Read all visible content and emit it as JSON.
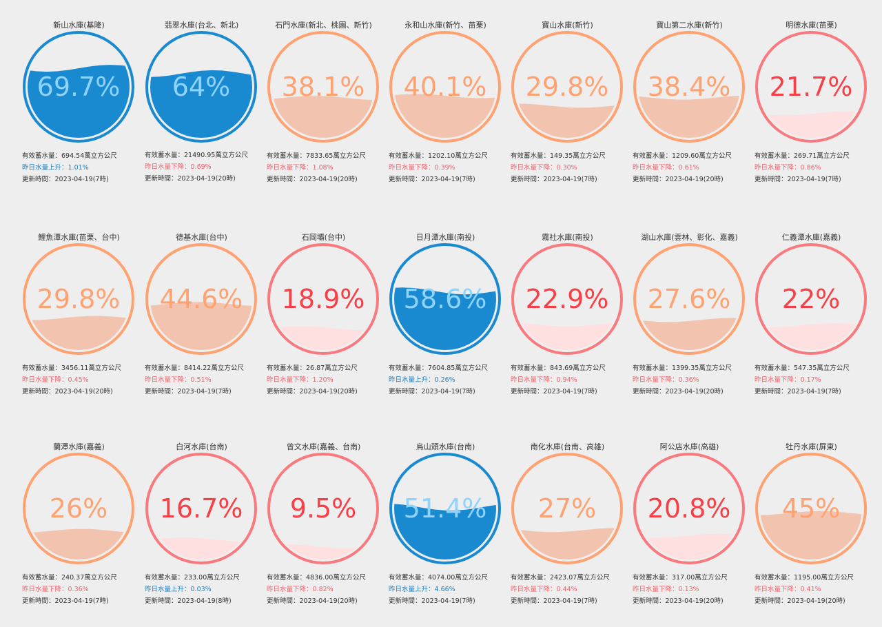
{
  "labels": {
    "volume_prefix": "有效蓄水量：",
    "volume_unit": "萬立方公尺",
    "update_prefix": "更新時間：",
    "up_prefix": "昨日水量上升：",
    "down_prefix": "昨日水量下降："
  },
  "colors": {
    "blue": "#1a8ad0",
    "orange": "#ffa272",
    "red": "#f87a7f",
    "orange_fill": "#f2c4b0",
    "red_fill": "#ffe0e0",
    "orange_text": "#ffa272",
    "red_text": "#f63f46",
    "blue_text_light": "#8fd3ff",
    "blue_text_dark": "#0e4c78"
  },
  "reservoirs": [
    {
      "name": "新山水庫(基隆)",
      "percent": 69.7,
      "percent_label": "69.7%",
      "volume": "694.54",
      "direction": "up",
      "change": "1.01%",
      "updated": "2023-04-19(7時)",
      "level": "blue"
    },
    {
      "name": "翡翠水庫(台北、新北)",
      "percent": 64,
      "percent_label": "64%",
      "volume": "21490.95",
      "direction": "down",
      "change": "0.69%",
      "updated": "2023-04-19(20時)",
      "level": "blue"
    },
    {
      "name": "石門水庫(新北、桃園、新竹)",
      "percent": 38.1,
      "percent_label": "38.1%",
      "volume": "7833.65",
      "direction": "down",
      "change": "1.08%",
      "updated": "2023-04-19(20時)",
      "level": "orange"
    },
    {
      "name": "永和山水庫(新竹、苗栗)",
      "percent": 40.1,
      "percent_label": "40.1%",
      "volume": "1202.10",
      "direction": "down",
      "change": "0.39%",
      "updated": "2023-04-19(7時)",
      "level": "orange"
    },
    {
      "name": "寶山水庫(新竹)",
      "percent": 29.8,
      "percent_label": "29.8%",
      "volume": "149.35",
      "direction": "down",
      "change": "0.30%",
      "updated": "2023-04-19(7時)",
      "level": "orange"
    },
    {
      "name": "寶山第二水庫(新竹)",
      "percent": 38.4,
      "percent_label": "38.4%",
      "volume": "1209.60",
      "direction": "down",
      "change": "0.61%",
      "updated": "2023-04-19(20時)",
      "level": "orange"
    },
    {
      "name": "明德水庫(苗栗)",
      "percent": 21.7,
      "percent_label": "21.7%",
      "volume": "269.71",
      "direction": "down",
      "change": "0.86%",
      "updated": "2023-04-19(7時)",
      "level": "red"
    },
    {
      "name": "鯉魚潭水庫(苗栗、台中)",
      "percent": 29.8,
      "percent_label": "29.8%",
      "volume": "3456.11",
      "direction": "down",
      "change": "0.45%",
      "updated": "2023-04-19(20時)",
      "level": "orange"
    },
    {
      "name": "德基水庫(台中)",
      "percent": 44.6,
      "percent_label": "44.6%",
      "volume": "8414.22",
      "direction": "down",
      "change": "0.51%",
      "updated": "2023-04-19(7時)",
      "level": "orange"
    },
    {
      "name": "石岡壩(台中)",
      "percent": 18.9,
      "percent_label": "18.9%",
      "volume": "26.87",
      "direction": "down",
      "change": "1.20%",
      "updated": "2023-04-19(20時)",
      "level": "red"
    },
    {
      "name": "日月潭水庫(南投)",
      "percent": 58.6,
      "percent_label": "58.6%",
      "volume": "7604.85",
      "direction": "up",
      "change": "0.26%",
      "updated": "2023-04-19(7時)",
      "level": "blue"
    },
    {
      "name": "霧社水庫(南投)",
      "percent": 22.9,
      "percent_label": "22.9%",
      "volume": "843.69",
      "direction": "down",
      "change": "0.94%",
      "updated": "2023-04-19(7時)",
      "level": "red"
    },
    {
      "name": "湖山水庫(雲林、彰化、嘉義)",
      "percent": 27.6,
      "percent_label": "27.6%",
      "volume": "1399.35",
      "direction": "down",
      "change": "0.36%",
      "updated": "2023-04-19(20時)",
      "level": "orange"
    },
    {
      "name": "仁義潭水庫(嘉義)",
      "percent": 22,
      "percent_label": "22%",
      "volume": "547.35",
      "direction": "down",
      "change": "0.17%",
      "updated": "2023-04-19(7時)",
      "level": "red"
    },
    {
      "name": "蘭潭水庫(嘉義)",
      "percent": 26,
      "percent_label": "26%",
      "volume": "240.37",
      "direction": "down",
      "change": "0.36%",
      "updated": "2023-04-19(7時)",
      "level": "orange"
    },
    {
      "name": "白河水庫(台南)",
      "percent": 16.7,
      "percent_label": "16.7%",
      "volume": "233.00",
      "direction": "up",
      "change": "0.03%",
      "updated": "2023-04-19(8時)",
      "level": "red"
    },
    {
      "name": "曾文水庫(嘉義、台南)",
      "percent": 9.5,
      "percent_label": "9.5%",
      "volume": "4836.00",
      "direction": "down",
      "change": "0.82%",
      "updated": "2023-04-19(20時)",
      "level": "red"
    },
    {
      "name": "烏山頭水庫(台南)",
      "percent": 51.4,
      "percent_label": "51.4%",
      "volume": "4074.00",
      "direction": "up",
      "change": "4.66%",
      "updated": "2023-04-19(7時)",
      "level": "blue"
    },
    {
      "name": "南化水庫(台南、高雄)",
      "percent": 27,
      "percent_label": "27%",
      "volume": "2423.07",
      "direction": "down",
      "change": "0.44%",
      "updated": "2023-04-19(7時)",
      "level": "orange"
    },
    {
      "name": "阿公店水庫(高雄)",
      "percent": 20.8,
      "percent_label": "20.8%",
      "volume": "317.00",
      "direction": "down",
      "change": "0.13%",
      "updated": "2023-04-19(20時)",
      "level": "red"
    },
    {
      "name": "牡丹水庫(屏東)",
      "percent": 45,
      "percent_label": "45%",
      "volume": "1195.00",
      "direction": "down",
      "change": "0.41%",
      "updated": "2023-04-19(20時)",
      "level": "orange"
    }
  ]
}
